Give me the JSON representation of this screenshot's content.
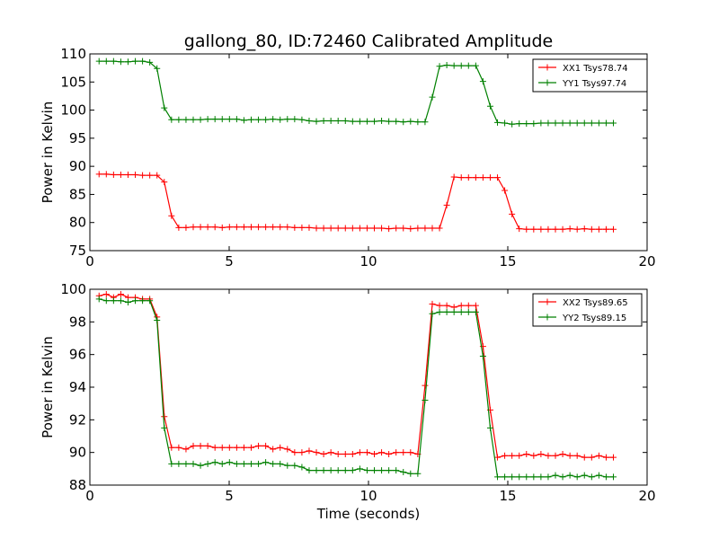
{
  "chart_data": [
    {
      "type": "line",
      "title": "gallong_80, ID:72460 Calibrated Amplitude",
      "xlabel": "",
      "ylabel": "Power in Kelvin",
      "xlim": [
        0,
        20
      ],
      "ylim": [
        75,
        110
      ],
      "xticks": [
        "0",
        "5",
        "10",
        "15",
        "20"
      ],
      "yticks": [
        "75",
        "80",
        "85",
        "90",
        "95",
        "100",
        "105",
        "110"
      ],
      "legend_position": "top-right",
      "x": [
        0.33,
        0.59,
        0.85,
        1.11,
        1.37,
        1.63,
        1.89,
        2.15,
        2.41,
        2.67,
        2.93,
        3.19,
        3.45,
        3.71,
        3.97,
        4.23,
        4.49,
        4.75,
        5.01,
        5.27,
        5.53,
        5.79,
        6.05,
        6.31,
        6.57,
        6.83,
        7.09,
        7.35,
        7.61,
        7.87,
        8.13,
        8.39,
        8.65,
        8.91,
        9.17,
        9.43,
        9.69,
        9.95,
        10.21,
        10.47,
        10.73,
        10.99,
        11.25,
        11.51,
        11.77,
        12.03,
        12.29,
        12.55,
        12.81,
        13.07,
        13.33,
        13.59,
        13.85,
        14.11,
        14.37,
        14.63,
        14.89,
        15.15,
        15.41,
        15.67,
        15.93,
        16.19,
        16.45,
        16.71,
        16.97,
        17.23,
        17.49,
        17.75,
        18.01,
        18.27,
        18.53,
        18.79
      ],
      "series": [
        {
          "name": "XX1 Tsys78.74",
          "color": "#ff0000",
          "values": [
            88.6,
            88.6,
            88.5,
            88.5,
            88.5,
            88.5,
            88.4,
            88.4,
            88.4,
            87.2,
            81.2,
            79.1,
            79.1,
            79.2,
            79.2,
            79.2,
            79.2,
            79.1,
            79.2,
            79.2,
            79.2,
            79.2,
            79.2,
            79.2,
            79.2,
            79.2,
            79.2,
            79.1,
            79.1,
            79.1,
            79.0,
            79.0,
            79.0,
            79.0,
            79.0,
            79.0,
            79.0,
            79.0,
            79.0,
            79.0,
            78.9,
            79.0,
            79.0,
            78.9,
            79.0,
            79.0,
            79.0,
            79.0,
            83.1,
            88.1,
            88.0,
            88.0,
            88.0,
            88.0,
            88.0,
            88.0,
            85.7,
            81.5,
            78.9,
            78.8,
            78.8,
            78.8,
            78.8,
            78.8,
            78.8,
            78.9,
            78.8,
            78.9,
            78.8,
            78.8,
            78.8,
            78.8
          ]
        },
        {
          "name": "YY1 Tsys97.74",
          "color": "#008000",
          "values": [
            108.7,
            108.7,
            108.7,
            108.6,
            108.6,
            108.7,
            108.7,
            108.5,
            107.4,
            100.4,
            98.3,
            98.3,
            98.3,
            98.3,
            98.3,
            98.4,
            98.4,
            98.4,
            98.4,
            98.4,
            98.2,
            98.3,
            98.3,
            98.3,
            98.4,
            98.3,
            98.4,
            98.4,
            98.3,
            98.1,
            98.0,
            98.1,
            98.1,
            98.1,
            98.1,
            98.0,
            98.0,
            98.0,
            98.0,
            98.1,
            98.0,
            98.0,
            97.9,
            98.0,
            97.9,
            97.9,
            102.3,
            107.8,
            108.0,
            107.9,
            107.9,
            107.9,
            107.9,
            105.1,
            100.7,
            97.8,
            97.7,
            97.5,
            97.6,
            97.6,
            97.6,
            97.7,
            97.7,
            97.7,
            97.7,
            97.7,
            97.7,
            97.7,
            97.7,
            97.7,
            97.7,
            97.7
          ]
        }
      ]
    },
    {
      "type": "line",
      "title": "",
      "xlabel": "Time (seconds)",
      "ylabel": "Power in Kelvin",
      "xlim": [
        0,
        20
      ],
      "ylim": [
        88,
        100
      ],
      "xticks": [
        "0",
        "5",
        "10",
        "15",
        "20"
      ],
      "yticks": [
        "88",
        "90",
        "92",
        "94",
        "96",
        "98",
        "100"
      ],
      "legend_position": "top-right",
      "x": [
        0.33,
        0.59,
        0.85,
        1.11,
        1.37,
        1.63,
        1.89,
        2.15,
        2.41,
        2.67,
        2.93,
        3.19,
        3.45,
        3.71,
        3.97,
        4.23,
        4.49,
        4.75,
        5.01,
        5.27,
        5.53,
        5.79,
        6.05,
        6.31,
        6.57,
        6.83,
        7.09,
        7.35,
        7.61,
        7.87,
        8.13,
        8.39,
        8.65,
        8.91,
        9.17,
        9.43,
        9.69,
        9.95,
        10.21,
        10.47,
        10.73,
        10.99,
        11.25,
        11.51,
        11.77,
        12.03,
        12.29,
        12.55,
        12.81,
        13.07,
        13.33,
        13.59,
        13.85,
        14.11,
        14.37,
        14.63,
        14.89,
        15.15,
        15.41,
        15.67,
        15.93,
        16.19,
        16.45,
        16.71,
        16.97,
        17.23,
        17.49,
        17.75,
        18.01,
        18.27,
        18.53,
        18.79
      ],
      "series": [
        {
          "name": "XX2 Tsys89.65",
          "color": "#ff0000",
          "values": [
            99.6,
            99.7,
            99.5,
            99.7,
            99.5,
            99.5,
            99.4,
            99.4,
            98.3,
            92.2,
            90.3,
            90.3,
            90.2,
            90.4,
            90.4,
            90.4,
            90.3,
            90.3,
            90.3,
            90.3,
            90.3,
            90.3,
            90.4,
            90.4,
            90.2,
            90.3,
            90.2,
            90.0,
            90.0,
            90.1,
            90.0,
            89.9,
            90.0,
            89.9,
            89.9,
            89.9,
            90.0,
            90.0,
            89.9,
            90.0,
            89.9,
            90.0,
            90.0,
            90.0,
            89.9,
            94.1,
            99.1,
            99.0,
            99.0,
            98.9,
            99.0,
            99.0,
            99.0,
            96.5,
            92.6,
            89.7,
            89.8,
            89.8,
            89.8,
            89.9,
            89.8,
            89.9,
            89.8,
            89.8,
            89.9,
            89.8,
            89.8,
            89.7,
            89.7,
            89.8,
            89.7,
            89.7
          ]
        },
        {
          "name": "YY2 Tsys89.15",
          "color": "#008000",
          "values": [
            99.4,
            99.3,
            99.3,
            99.3,
            99.2,
            99.3,
            99.3,
            99.3,
            98.1,
            91.5,
            89.3,
            89.3,
            89.3,
            89.3,
            89.2,
            89.3,
            89.4,
            89.3,
            89.4,
            89.3,
            89.3,
            89.3,
            89.3,
            89.4,
            89.3,
            89.3,
            89.2,
            89.2,
            89.1,
            88.9,
            88.9,
            88.9,
            88.9,
            88.9,
            88.9,
            88.9,
            89.0,
            88.9,
            88.9,
            88.9,
            88.9,
            88.9,
            88.8,
            88.7,
            88.7,
            93.2,
            98.5,
            98.6,
            98.6,
            98.6,
            98.6,
            98.6,
            98.6,
            95.9,
            91.5,
            88.5,
            88.5,
            88.5,
            88.5,
            88.5,
            88.5,
            88.5,
            88.5,
            88.6,
            88.5,
            88.6,
            88.5,
            88.6,
            88.5,
            88.6,
            88.5,
            88.5
          ]
        }
      ]
    }
  ]
}
